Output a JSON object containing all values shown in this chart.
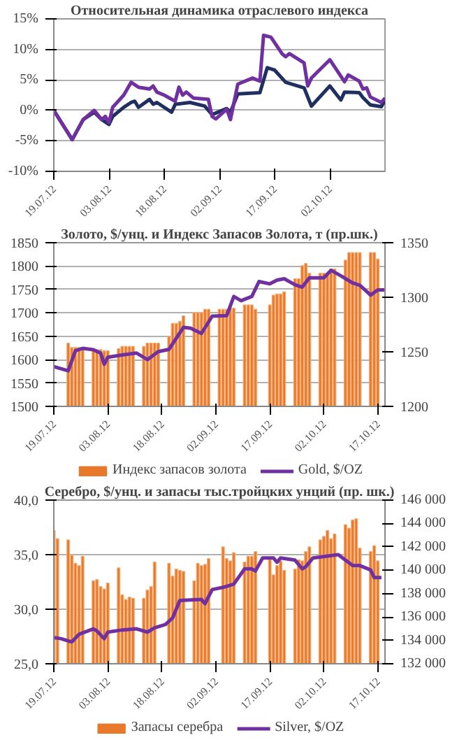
{
  "chart_data": [
    {
      "type": "line",
      "title": "Относительная динамика отраслевого индекса",
      "legend": false,
      "grid": "y",
      "ylim": [
        -10,
        15
      ],
      "yticks": [
        {
          "value": -10,
          "label": "-10%"
        },
        {
          "value": -5,
          "label": "-5%"
        },
        {
          "value": 0,
          "label": "0%"
        },
        {
          "value": 5,
          "label": "5%"
        },
        {
          "value": 10,
          "label": "10%"
        },
        {
          "value": 15,
          "label": "15%"
        }
      ],
      "xlim": [
        "2012-07-19",
        "2012-10-17"
      ],
      "xticks": [
        {
          "value": "2012-07-19",
          "label": "19.07.12"
        },
        {
          "value": "2012-08-03",
          "label": "03.08.12"
        },
        {
          "value": "2012-08-18",
          "label": "18.08.12"
        },
        {
          "value": "2012-09-02",
          "label": "02.09.12"
        },
        {
          "value": "2012-09-17",
          "label": "17.09.12"
        },
        {
          "value": "2012-10-02",
          "label": "02.10.12"
        }
      ],
      "series": [
        {
          "color": "#1f2f5f",
          "x": [
            "2012-07-19",
            "2012-07-24",
            "2012-07-27",
            "2012-07-30",
            "2012-08-01",
            "2012-08-03",
            "2012-08-04",
            "2012-08-07",
            "2012-08-09",
            "2012-08-10",
            "2012-08-11",
            "2012-08-14",
            "2012-08-15",
            "2012-08-16",
            "2012-08-20",
            "2012-08-21",
            "2012-08-25",
            "2012-08-29",
            "2012-08-31",
            "2012-09-04",
            "2012-09-05",
            "2012-09-07",
            "2012-09-13",
            "2012-09-15",
            "2012-09-17",
            "2012-09-20",
            "2012-09-25",
            "2012-09-27",
            "2012-10-02",
            "2012-10-05",
            "2012-10-06",
            "2012-10-10",
            "2012-10-11",
            "2012-10-13",
            "2012-10-16",
            "2012-10-17"
          ],
          "values": [
            0,
            -4.8,
            -1.5,
            -0.3,
            -1.5,
            -2.3,
            -1,
            0.5,
            1.3,
            1.5,
            0.5,
            1.8,
            1,
            1.3,
            -0.3,
            1,
            1.3,
            0.7,
            -0.7,
            0.3,
            -0.3,
            2.7,
            2.9,
            7,
            6.6,
            4.6,
            3.7,
            0.7,
            4,
            1.7,
            3,
            2.9,
            2.1,
            0.9,
            0.6,
            1.7
          ]
        },
        {
          "color": "#7030a0",
          "x": [
            "2012-07-19",
            "2012-07-24",
            "2012-07-27",
            "2012-07-30",
            "2012-08-01",
            "2012-08-02",
            "2012-08-03",
            "2012-08-04",
            "2012-08-07",
            "2012-08-09",
            "2012-08-11",
            "2012-08-14",
            "2012-08-15",
            "2012-08-16",
            "2012-08-18",
            "2012-08-21",
            "2012-08-22",
            "2012-08-23",
            "2012-08-24",
            "2012-08-26",
            "2012-08-30",
            "2012-08-31",
            "2012-09-01",
            "2012-09-04",
            "2012-09-05",
            "2012-09-07",
            "2012-09-11",
            "2012-09-13",
            "2012-09-14",
            "2012-09-16",
            "2012-09-19",
            "2012-09-20",
            "2012-09-21",
            "2012-09-25",
            "2012-09-26",
            "2012-09-27",
            "2012-10-02",
            "2012-10-06",
            "2012-10-07",
            "2012-10-10",
            "2012-10-11",
            "2012-10-12",
            "2012-10-13",
            "2012-10-16",
            "2012-10-17"
          ],
          "values": [
            0,
            -4.8,
            -1.5,
            0,
            -1.5,
            -1,
            -2,
            0.5,
            2.5,
            4.6,
            3.8,
            3.5,
            4,
            3,
            2.5,
            1.5,
            3.8,
            2.5,
            3,
            2,
            1.8,
            -1,
            -1.4,
            0.2,
            -1.5,
            4.3,
            5.3,
            4.8,
            12.3,
            12,
            9.3,
            8.8,
            9.3,
            7.8,
            4,
            5.3,
            8.3,
            4.7,
            5.8,
            4.8,
            3.5,
            3.7,
            2.2,
            1.3,
            2
          ]
        }
      ]
    },
    {
      "type": "bar",
      "title": "Золото, $/унц. и Индекс Запасов Золота, т (пр.шк.)",
      "legend": "bottom",
      "grid": "y",
      "ylim": [
        1500,
        1850
      ],
      "yticks": [
        1500,
        1550,
        1600,
        1650,
        1700,
        1750,
        1800,
        1850
      ],
      "y2lim": [
        1200,
        1350
      ],
      "y2ticks": [
        1200,
        1250,
        1300,
        1350
      ],
      "xlim": [
        "2012-07-19",
        "2012-10-19"
      ],
      "xticks": [
        {
          "value": "2012-07-19",
          "label": "19.07.12"
        },
        {
          "value": "2012-08-03",
          "label": "03.08.12"
        },
        {
          "value": "2012-08-18",
          "label": "18.08.12"
        },
        {
          "value": "2012-09-02",
          "label": "02.09.12"
        },
        {
          "value": "2012-09-17",
          "label": "17.09.12"
        },
        {
          "value": "2012-10-02",
          "label": "02.10.12"
        },
        {
          "value": "2012-10-17",
          "label": "17.10.12"
        }
      ],
      "series": [
        {
          "type": "bar",
          "axis": "y2",
          "name": "Индекс запасов золота",
          "color": "#e8782a",
          "x": [
            "2012-07-23",
            "2012-07-24",
            "2012-07-25",
            "2012-07-26",
            "2012-07-27",
            "2012-07-30",
            "2012-07-31",
            "2012-08-01",
            "2012-08-02",
            "2012-08-03",
            "2012-08-06",
            "2012-08-07",
            "2012-08-08",
            "2012-08-09",
            "2012-08-10",
            "2012-08-13",
            "2012-08-14",
            "2012-08-15",
            "2012-08-16",
            "2012-08-17",
            "2012-08-20",
            "2012-08-21",
            "2012-08-22",
            "2012-08-23",
            "2012-08-24",
            "2012-08-27",
            "2012-08-28",
            "2012-08-29",
            "2012-08-30",
            "2012-08-31",
            "2012-09-03",
            "2012-09-04",
            "2012-09-05",
            "2012-09-06",
            "2012-09-07",
            "2012-09-10",
            "2012-09-11",
            "2012-09-12",
            "2012-09-13",
            "2012-09-17",
            "2012-09-18",
            "2012-09-19",
            "2012-09-20",
            "2012-09-21",
            "2012-09-24",
            "2012-09-25",
            "2012-09-26",
            "2012-09-27",
            "2012-09-28",
            "2012-10-01",
            "2012-10-02",
            "2012-10-03",
            "2012-10-04",
            "2012-10-05",
            "2012-10-08",
            "2012-10-09",
            "2012-10-10",
            "2012-10-11",
            "2012-10-12",
            "2012-10-15",
            "2012-10-16",
            "2012-10-17"
          ],
          "values": [
            1258,
            1254,
            1254,
            1254,
            1254,
            1252,
            1252,
            1252,
            1251,
            1251,
            1253,
            1255,
            1255,
            1255,
            1255,
            1255,
            1258,
            1258,
            1258,
            1258,
            1264,
            1276,
            1276,
            1278,
            1283,
            1286,
            1286,
            1286,
            1289,
            1289,
            1289,
            1289,
            1289,
            1290,
            1290,
            1293,
            1293,
            1293,
            1289,
            1293,
            1302,
            1303,
            1303,
            1305,
            1317,
            1317,
            1329,
            1331,
            1322,
            1322,
            1322,
            1322,
            1326,
            1326,
            1334,
            1341,
            1341,
            1341,
            1341,
            1341,
            1341,
            1335
          ]
        },
        {
          "type": "line",
          "name": "Gold, $/OZ",
          "color": "#7030a0",
          "x": [
            "2012-07-19",
            "2012-07-23",
            "2012-07-25",
            "2012-07-27",
            "2012-07-30",
            "2012-08-01",
            "2012-08-02",
            "2012-08-03",
            "2012-08-07",
            "2012-08-11",
            "2012-08-14",
            "2012-08-17",
            "2012-08-20",
            "2012-08-24",
            "2012-08-26",
            "2012-08-29",
            "2012-09-01",
            "2012-09-05",
            "2012-09-07",
            "2012-09-09",
            "2012-09-12",
            "2012-09-14",
            "2012-09-17",
            "2012-09-19",
            "2012-09-21",
            "2012-09-24",
            "2012-09-26",
            "2012-09-28",
            "2012-10-02",
            "2012-10-04",
            "2012-10-07",
            "2012-10-10",
            "2012-10-12",
            "2012-10-15",
            "2012-10-17",
            "2012-10-19"
          ],
          "values": [
            1585,
            1576,
            1619,
            1624,
            1621,
            1614,
            1590,
            1605,
            1610,
            1614,
            1600,
            1617,
            1622,
            1669,
            1667,
            1656,
            1693,
            1694,
            1735,
            1726,
            1735,
            1767,
            1762,
            1770,
            1773,
            1760,
            1755,
            1775,
            1775,
            1791,
            1778,
            1764,
            1759,
            1738,
            1749,
            1749
          ]
        }
      ]
    },
    {
      "type": "bar",
      "title": "Серебро, $/унц. и запасы тыс.тройцких унций (пр. шк.)",
      "legend": "bottom",
      "grid": "y",
      "ylim": [
        25,
        40
      ],
      "yticks": [
        {
          "value": 25,
          "label": "25,0"
        },
        {
          "value": 30,
          "label": "30,0"
        },
        {
          "value": 35,
          "label": "35,0"
        },
        {
          "value": 40,
          "label": "40,0"
        }
      ],
      "y2lim": [
        132000,
        146000
      ],
      "y2ticks": [
        {
          "value": 132000,
          "label": "132 000"
        },
        {
          "value": 134000,
          "label": "134 000"
        },
        {
          "value": 136000,
          "label": "136 000"
        },
        {
          "value": 138000,
          "label": "138 000"
        },
        {
          "value": 140000,
          "label": "140 000"
        },
        {
          "value": 142000,
          "label": "142 000"
        },
        {
          "value": 144000,
          "label": "144 000"
        },
        {
          "value": 146000,
          "label": "146 000"
        }
      ],
      "xlim": [
        "2012-07-19",
        "2012-10-19"
      ],
      "xticks": [
        {
          "value": "2012-07-19",
          "label": "19.07.12"
        },
        {
          "value": "2012-08-03",
          "label": "03.08.12"
        },
        {
          "value": "2012-08-18",
          "label": "18.08.12"
        },
        {
          "value": "2012-09-02",
          "label": "02.09.12"
        },
        {
          "value": "2012-09-17",
          "label": "17.09.12"
        },
        {
          "value": "2012-10-02",
          "label": "02.10.12"
        },
        {
          "value": "2012-10-17",
          "label": "17.10.12"
        }
      ],
      "series": [
        {
          "type": "bar",
          "axis": "y2",
          "name": "Запасы серебра",
          "color": "#e8782a",
          "x": [
            "2012-07-19",
            "2012-07-20",
            "2012-07-23",
            "2012-07-24",
            "2012-07-25",
            "2012-07-26",
            "2012-07-27",
            "2012-07-30",
            "2012-07-31",
            "2012-08-01",
            "2012-08-02",
            "2012-08-03",
            "2012-08-06",
            "2012-08-07",
            "2012-08-08",
            "2012-08-09",
            "2012-08-10",
            "2012-08-13",
            "2012-08-14",
            "2012-08-15",
            "2012-08-16",
            "2012-08-20",
            "2012-08-21",
            "2012-08-22",
            "2012-08-23",
            "2012-08-24",
            "2012-08-27",
            "2012-08-28",
            "2012-08-29",
            "2012-08-30",
            "2012-08-31",
            "2012-09-04",
            "2012-09-05",
            "2012-09-06",
            "2012-09-07",
            "2012-09-10",
            "2012-09-11",
            "2012-09-12",
            "2012-09-13",
            "2012-09-17",
            "2012-09-18",
            "2012-09-19",
            "2012-09-20",
            "2012-09-21",
            "2012-09-24",
            "2012-09-25",
            "2012-09-26",
            "2012-09-27",
            "2012-09-28",
            "2012-10-01",
            "2012-10-02",
            "2012-10-03",
            "2012-10-04",
            "2012-10-05",
            "2012-10-08",
            "2012-10-09",
            "2012-10-10",
            "2012-10-11",
            "2012-10-12",
            "2012-10-15",
            "2012-10-16",
            "2012-10-17"
          ],
          "values": [
            143400,
            142700,
            142600,
            141300,
            140600,
            140400,
            141200,
            139100,
            139200,
            138600,
            138400,
            138900,
            140200,
            137900,
            137500,
            137700,
            137600,
            137600,
            138300,
            138600,
            140700,
            140600,
            139500,
            140100,
            140000,
            139900,
            139100,
            140600,
            140400,
            140500,
            141000,
            142000,
            141000,
            140800,
            141500,
            140700,
            141200,
            141200,
            141600,
            140900,
            139600,
            140400,
            140800,
            140000,
            140100,
            140900,
            140800,
            141600,
            142000,
            142600,
            142900,
            143400,
            142700,
            143100,
            143900,
            143600,
            144300,
            144400,
            141900,
            141600,
            142100,
            140800
          ]
        },
        {
          "type": "line",
          "name": "Silver, $/OZ",
          "color": "#7030a0",
          "x": [
            "2012-07-19",
            "2012-07-21",
            "2012-07-24",
            "2012-07-26",
            "2012-07-30",
            "2012-07-31",
            "2012-08-02",
            "2012-08-03",
            "2012-08-07",
            "2012-08-11",
            "2012-08-14",
            "2012-08-16",
            "2012-08-19",
            "2012-08-21",
            "2012-08-23",
            "2012-08-29",
            "2012-08-30",
            "2012-09-01",
            "2012-09-04",
            "2012-09-07",
            "2012-09-10",
            "2012-09-12",
            "2012-09-13",
            "2012-09-15",
            "2012-09-18",
            "2012-09-19",
            "2012-09-20",
            "2012-09-24",
            "2012-09-26",
            "2012-09-27",
            "2012-09-29",
            "2012-10-06",
            "2012-10-10",
            "2012-10-12",
            "2012-10-15",
            "2012-10-16",
            "2012-10-18"
          ],
          "values": [
            27.4,
            27.3,
            27.0,
            27.7,
            28.2,
            28.0,
            27.3,
            27.9,
            28.1,
            28.2,
            27.9,
            28.3,
            28.6,
            29.2,
            30.8,
            30.9,
            30.5,
            31.8,
            32.0,
            32.3,
            33.7,
            33.7,
            33.5,
            34.7,
            34.7,
            34.3,
            34.7,
            34.5,
            33.7,
            33.9,
            34.7,
            35.0,
            34.0,
            34.0,
            33.6,
            32.9,
            32.9
          ]
        }
      ]
    }
  ]
}
